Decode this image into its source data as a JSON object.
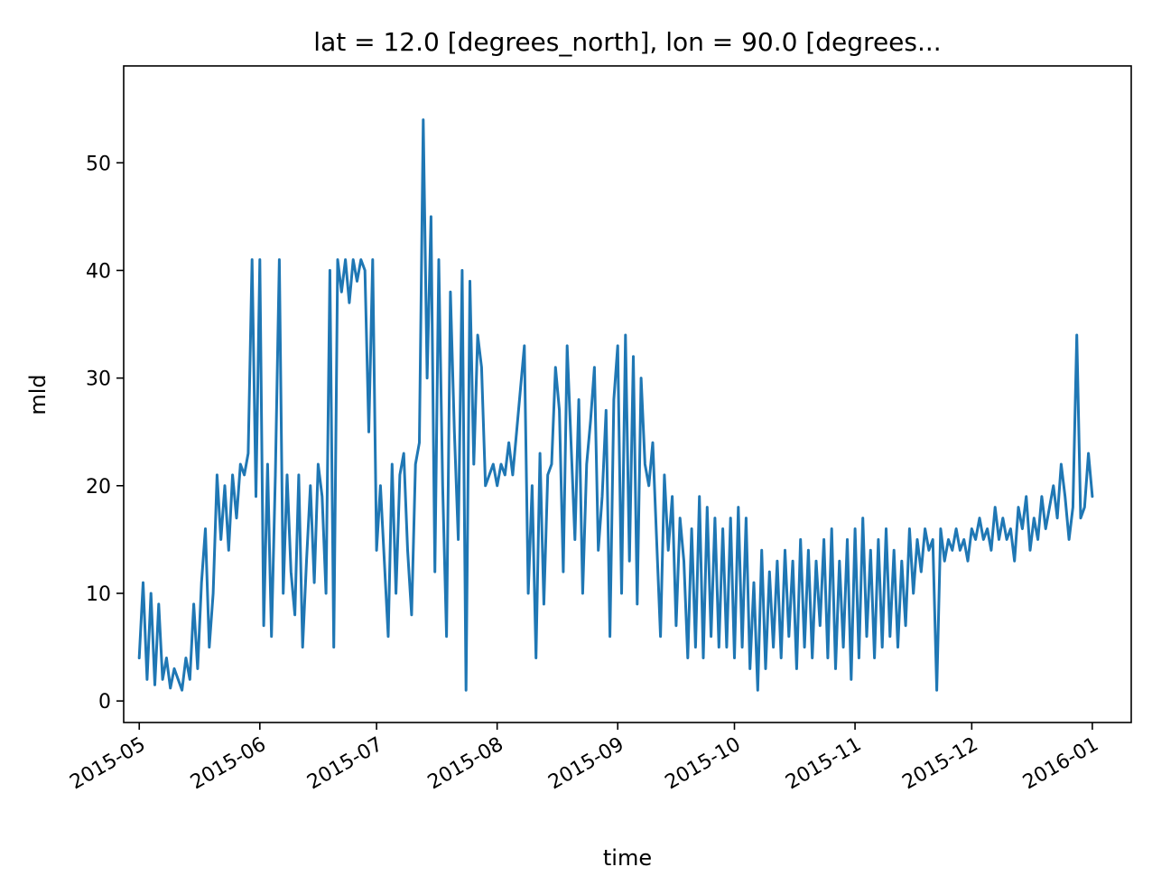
{
  "chart_data": {
    "type": "line",
    "title": "lat = 12.0 [degrees_north], lon = 90.0 [degrees...",
    "xlabel": "time",
    "ylabel": "mld",
    "xlim": [
      "2015-04-27",
      "2016-01-11"
    ],
    "ylim": [
      -2,
      59
    ],
    "grid": false,
    "legend": "none",
    "x_ticks": [
      "2015-05",
      "2015-06",
      "2015-07",
      "2015-08",
      "2015-09",
      "2015-10",
      "2015-11",
      "2015-12",
      "2016-01"
    ],
    "y_ticks": [
      0,
      10,
      20,
      30,
      40,
      50
    ],
    "series": [
      {
        "color": "#1f77b4",
        "x": [
          "2015-05-01",
          "2015-05-02",
          "2015-05-03",
          "2015-05-04",
          "2015-05-05",
          "2015-05-06",
          "2015-05-07",
          "2015-05-08",
          "2015-05-09",
          "2015-05-10",
          "2015-05-11",
          "2015-05-12",
          "2015-05-13",
          "2015-05-14",
          "2015-05-15",
          "2015-05-16",
          "2015-05-17",
          "2015-05-18",
          "2015-05-19",
          "2015-05-20",
          "2015-05-21",
          "2015-05-22",
          "2015-05-23",
          "2015-05-24",
          "2015-05-25",
          "2015-05-26",
          "2015-05-27",
          "2015-05-28",
          "2015-05-29",
          "2015-05-30",
          "2015-05-31",
          "2015-06-01",
          "2015-06-02",
          "2015-06-03",
          "2015-06-04",
          "2015-06-05",
          "2015-06-06",
          "2015-06-07",
          "2015-06-08",
          "2015-06-09",
          "2015-06-10",
          "2015-06-11",
          "2015-06-12",
          "2015-06-13",
          "2015-06-14",
          "2015-06-15",
          "2015-06-16",
          "2015-06-17",
          "2015-06-18",
          "2015-06-19",
          "2015-06-20",
          "2015-06-21",
          "2015-06-22",
          "2015-06-23",
          "2015-06-24",
          "2015-06-25",
          "2015-06-26",
          "2015-06-27",
          "2015-06-28",
          "2015-06-29",
          "2015-06-30",
          "2015-07-01",
          "2015-07-02",
          "2015-07-03",
          "2015-07-04",
          "2015-07-05",
          "2015-07-06",
          "2015-07-07",
          "2015-07-08",
          "2015-07-09",
          "2015-07-10",
          "2015-07-11",
          "2015-07-12",
          "2015-07-13",
          "2015-07-14",
          "2015-07-15",
          "2015-07-16",
          "2015-07-17",
          "2015-07-18",
          "2015-07-19",
          "2015-07-20",
          "2015-07-21",
          "2015-07-22",
          "2015-07-23",
          "2015-07-24",
          "2015-07-25",
          "2015-07-26",
          "2015-07-27",
          "2015-07-28",
          "2015-07-29",
          "2015-07-30",
          "2015-07-31",
          "2015-08-01",
          "2015-08-02",
          "2015-08-03",
          "2015-08-04",
          "2015-08-05",
          "2015-08-06",
          "2015-08-07",
          "2015-08-08",
          "2015-08-09",
          "2015-08-10",
          "2015-08-11",
          "2015-08-12",
          "2015-08-13",
          "2015-08-14",
          "2015-08-15",
          "2015-08-16",
          "2015-08-17",
          "2015-08-18",
          "2015-08-19",
          "2015-08-20",
          "2015-08-21",
          "2015-08-22",
          "2015-08-23",
          "2015-08-24",
          "2015-08-25",
          "2015-08-26",
          "2015-08-27",
          "2015-08-28",
          "2015-08-29",
          "2015-08-30",
          "2015-08-31",
          "2015-09-01",
          "2015-09-02",
          "2015-09-03",
          "2015-09-04",
          "2015-09-05",
          "2015-09-06",
          "2015-09-07",
          "2015-09-08",
          "2015-09-09",
          "2015-09-10",
          "2015-09-11",
          "2015-09-12",
          "2015-09-13",
          "2015-09-14",
          "2015-09-15",
          "2015-09-16",
          "2015-09-17",
          "2015-09-18",
          "2015-09-19",
          "2015-09-20",
          "2015-09-21",
          "2015-09-22",
          "2015-09-23",
          "2015-09-24",
          "2015-09-25",
          "2015-09-26",
          "2015-09-27",
          "2015-09-28",
          "2015-09-29",
          "2015-09-30",
          "2015-10-01",
          "2015-10-02",
          "2015-10-03",
          "2015-10-04",
          "2015-10-05",
          "2015-10-06",
          "2015-10-07",
          "2015-10-08",
          "2015-10-09",
          "2015-10-10",
          "2015-10-11",
          "2015-10-12",
          "2015-10-13",
          "2015-10-14",
          "2015-10-15",
          "2015-10-16",
          "2015-10-17",
          "2015-10-18",
          "2015-10-19",
          "2015-10-20",
          "2015-10-21",
          "2015-10-22",
          "2015-10-23",
          "2015-10-24",
          "2015-10-25",
          "2015-10-26",
          "2015-10-27",
          "2015-10-28",
          "2015-10-29",
          "2015-10-30",
          "2015-10-31",
          "2015-11-01",
          "2015-11-02",
          "2015-11-03",
          "2015-11-04",
          "2015-11-05",
          "2015-11-06",
          "2015-11-07",
          "2015-11-08",
          "2015-11-09",
          "2015-11-10",
          "2015-11-11",
          "2015-11-12",
          "2015-11-13",
          "2015-11-14",
          "2015-11-15",
          "2015-11-16",
          "2015-11-17",
          "2015-11-18",
          "2015-11-19",
          "2015-11-20",
          "2015-11-21",
          "2015-11-22",
          "2015-11-23",
          "2015-11-24",
          "2015-11-25",
          "2015-11-26",
          "2015-11-27",
          "2015-11-28",
          "2015-11-29",
          "2015-11-30",
          "2015-12-01",
          "2015-12-02",
          "2015-12-03",
          "2015-12-04",
          "2015-12-05",
          "2015-12-06",
          "2015-12-07",
          "2015-12-08",
          "2015-12-09",
          "2015-12-10",
          "2015-12-11",
          "2015-12-12",
          "2015-12-13",
          "2015-12-14",
          "2015-12-15",
          "2015-12-16",
          "2015-12-17",
          "2015-12-18",
          "2015-12-19",
          "2015-12-20",
          "2015-12-21",
          "2015-12-22",
          "2015-12-23",
          "2015-12-24",
          "2015-12-25",
          "2015-12-26",
          "2015-12-27",
          "2015-12-28",
          "2015-12-29",
          "2015-12-30",
          "2015-12-31",
          "2016-01-01"
        ],
        "y": [
          4,
          11,
          2,
          10,
          1.5,
          9,
          2,
          4,
          1.2,
          3,
          2,
          1,
          4,
          2,
          9,
          3,
          11,
          16,
          5,
          10,
          21,
          15,
          20,
          14,
          21,
          17,
          22,
          21,
          23,
          41,
          19,
          41,
          7,
          22,
          6,
          21,
          41,
          10,
          21,
          12,
          8,
          21,
          5,
          13,
          20,
          11,
          22,
          19,
          10,
          40,
          5,
          41,
          38,
          41,
          37,
          41,
          39,
          41,
          40,
          25,
          41,
          14,
          20,
          13,
          6,
          22,
          10,
          21,
          23,
          14,
          8,
          22,
          24,
          54,
          30,
          45,
          12,
          41,
          20,
          6,
          38,
          25,
          15,
          40,
          1,
          39,
          22,
          34,
          31,
          20,
          21,
          22,
          20,
          22,
          21,
          24,
          21,
          25,
          29,
          33,
          10,
          20,
          4,
          23,
          9,
          21,
          22,
          31,
          27,
          12,
          33,
          24,
          15,
          28,
          10,
          22,
          26,
          31,
          14,
          19,
          27,
          6,
          28,
          33,
          10,
          34,
          13,
          32,
          9,
          30,
          22,
          20,
          24,
          15,
          6,
          21,
          14,
          19,
          7,
          17,
          13,
          4,
          16,
          5,
          19,
          4,
          18,
          6,
          17,
          5,
          16,
          5,
          17,
          4,
          18,
          5,
          17,
          3,
          11,
          1,
          14,
          3,
          12,
          5,
          13,
          4,
          14,
          6,
          13,
          3,
          15,
          5,
          14,
          4,
          13,
          7,
          15,
          4,
          16,
          3,
          13,
          5,
          15,
          2,
          16,
          4,
          17,
          6,
          14,
          4,
          15,
          5,
          16,
          6,
          14,
          5,
          13,
          7,
          16,
          10,
          15,
          12,
          16,
          14,
          15,
          1,
          16,
          13,
          15,
          14,
          16,
          14,
          15,
          13,
          16,
          15,
          17,
          15,
          16,
          14,
          18,
          15,
          17,
          15,
          16,
          13,
          18,
          16,
          19,
          14,
          17,
          15,
          19,
          16,
          18,
          20,
          17,
          22,
          19,
          15,
          18,
          34,
          17,
          18,
          23,
          19
        ]
      }
    ]
  }
}
